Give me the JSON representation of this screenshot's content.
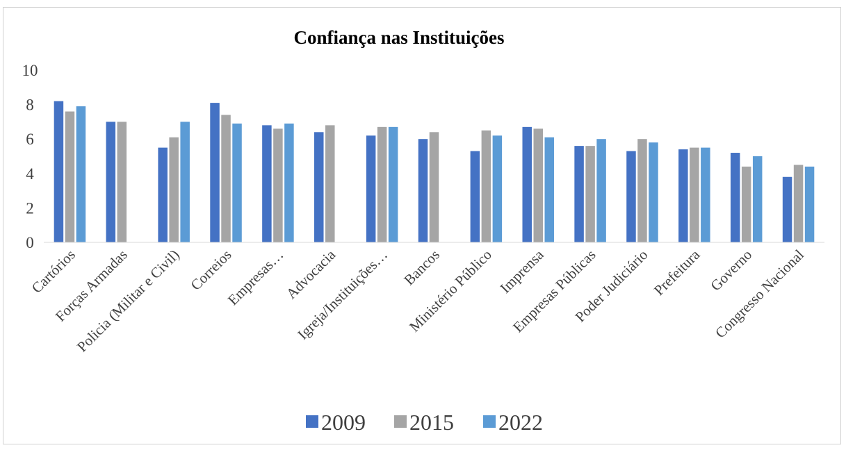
{
  "chart_data": {
    "type": "bar",
    "title": "Confiança nas Instituições",
    "xlabel": "",
    "ylabel": "",
    "ylim": [
      0,
      10
    ],
    "yticks": [
      0,
      2,
      4,
      6,
      8,
      10
    ],
    "grid": false,
    "legend_position": "bottom",
    "categories": [
      "Cartórios",
      "Forças Armadas",
      "Policia (Militar e Civil)",
      "Correios",
      "Empresas…",
      "Advocacia",
      "Igreja/Instituições…",
      "Bancos",
      "Ministério Público",
      "Imprensa",
      "Empresas Públicas",
      "Poder Judiciário",
      "Prefeitura",
      "Governo",
      "Congresso Nacional"
    ],
    "series": [
      {
        "name": "2009",
        "color": "#4472C4",
        "values": [
          8.2,
          7.0,
          5.5,
          8.1,
          6.8,
          6.4,
          6.2,
          6.0,
          5.3,
          6.7,
          5.6,
          5.3,
          5.4,
          5.2,
          3.8
        ]
      },
      {
        "name": "2015",
        "color": "#A5A5A5",
        "values": [
          7.6,
          7.0,
          6.1,
          7.4,
          6.6,
          6.8,
          6.7,
          6.4,
          6.5,
          6.6,
          5.6,
          6.0,
          5.5,
          4.4,
          4.5
        ]
      },
      {
        "name": "2022",
        "color": "#5B9BD5",
        "values": [
          7.9,
          null,
          7.0,
          6.9,
          6.9,
          null,
          6.7,
          null,
          6.2,
          6.1,
          6.0,
          5.8,
          5.5,
          5.0,
          4.4
        ]
      }
    ]
  }
}
